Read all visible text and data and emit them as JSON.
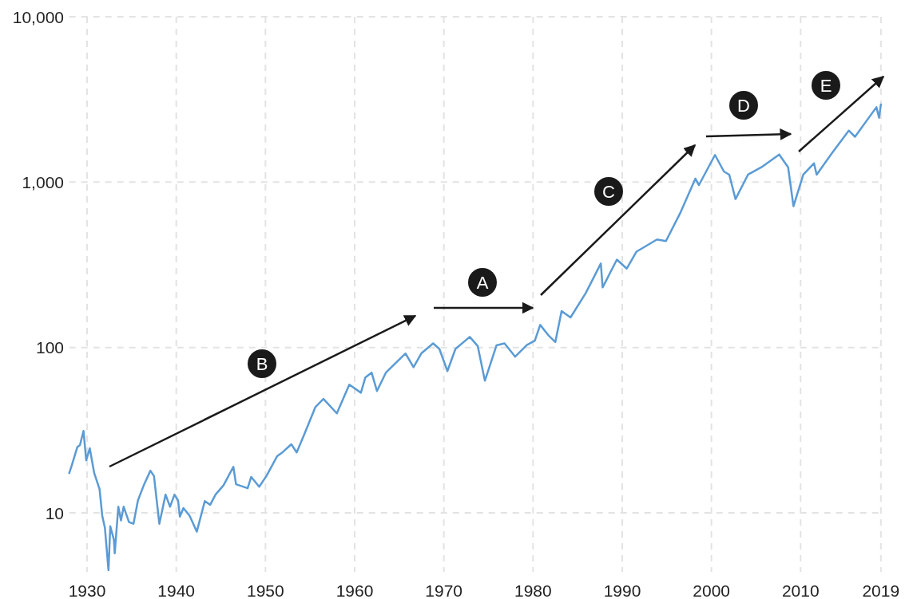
{
  "chart_data": {
    "type": "line",
    "x": [
      1928.0,
      1928.3,
      1928.9,
      1929.2,
      1929.6,
      1929.9,
      1930.3,
      1930.8,
      1931.4,
      1931.7,
      1932.0,
      1932.4,
      1932.6,
      1933.0,
      1933.1,
      1933.5,
      1933.8,
      1934.1,
      1934.7,
      1935.2,
      1935.7,
      1936.4,
      1937.1,
      1937.5,
      1938.1,
      1938.8,
      1939.3,
      1939.8,
      1940.2,
      1940.4,
      1940.8,
      1941.5,
      1942.3,
      1943.2,
      1943.8,
      1944.4,
      1945.3,
      1946.4,
      1946.7,
      1948.0,
      1948.4,
      1949.3,
      1950.1,
      1951.3,
      1951.8,
      1952.9,
      1953.5,
      1954.4,
      1955.6,
      1956.5,
      1958.0,
      1959.4,
      1960.7,
      1961.2,
      1961.9,
      1962.5,
      1963.5,
      1965.7,
      1966.6,
      1967.5,
      1968.8,
      1969.5,
      1970.4,
      1971.3,
      1972.9,
      1973.8,
      1974.6,
      1975.9,
      1976.8,
      1978.0,
      1979.3,
      1980.2,
      1980.8,
      1981.7,
      1982.5,
      1983.2,
      1984.2,
      1985.9,
      1987.6,
      1987.8,
      1989.4,
      1990.5,
      1991.6,
      1993.9,
      1994.9,
      1996.5,
      1998.2,
      1998.6,
      2000.4,
      2001.4,
      2002.0,
      2002.7,
      2004.1,
      2005.6,
      2007.6,
      2008.6,
      2009.2,
      2010.3,
      2011.5,
      2011.8,
      2013.4,
      2015.4,
      2016.1,
      2018.5,
      2018.8,
      2019.0
    ],
    "series": [
      {
        "color": "#5b9bd5",
        "values": [
          17.4,
          19.5,
          25,
          25.7,
          31.3,
          20.8,
          24.6,
          17.4,
          13.9,
          9.6,
          8.1,
          4.5,
          8.3,
          6.9,
          5.7,
          10.9,
          9.0,
          10.9,
          8.8,
          8.6,
          11.9,
          14.9,
          18.0,
          16.7,
          8.6,
          12.9,
          10.9,
          12.9,
          11.9,
          9.5,
          10.7,
          9.6,
          7.7,
          11.8,
          11.2,
          12.9,
          14.7,
          19.0,
          14.9,
          14.1,
          16.5,
          14.4,
          16.7,
          22,
          23,
          26,
          23.2,
          30.3,
          43.7,
          48.9,
          40,
          59.6,
          53.3,
          66,
          70.5,
          54.6,
          70.5,
          92,
          76,
          92.5,
          106,
          98,
          72,
          98,
          116,
          102,
          63,
          103,
          106,
          88,
          103.5,
          110,
          137,
          119,
          108,
          166,
          152,
          213,
          322,
          231,
          340,
          300,
          380,
          450,
          440,
          650,
          1050,
          960,
          1460,
          1160,
          1110,
          790,
          1110,
          1230,
          1470,
          1230,
          715,
          1110,
          1300,
          1110,
          1470,
          2050,
          1880,
          2840,
          2450,
          2950
        ]
      }
    ],
    "log": "y",
    "xlim": [
      1928,
      2019
    ],
    "xticks": [
      1930,
      1940,
      1950,
      1960,
      1970,
      1980,
      1990,
      2000,
      2010,
      2019
    ],
    "ylim": [
      4.4,
      10000
    ],
    "yticks": [
      {
        "value": 10,
        "label": "10"
      },
      {
        "value": 100,
        "label": "100"
      },
      {
        "value": 1000,
        "label": "1,000"
      },
      {
        "value": 10000,
        "label": "10,000"
      }
    ],
    "grid": true,
    "annotations": [
      "A",
      "B",
      "C",
      "D",
      "E"
    ]
  }
}
